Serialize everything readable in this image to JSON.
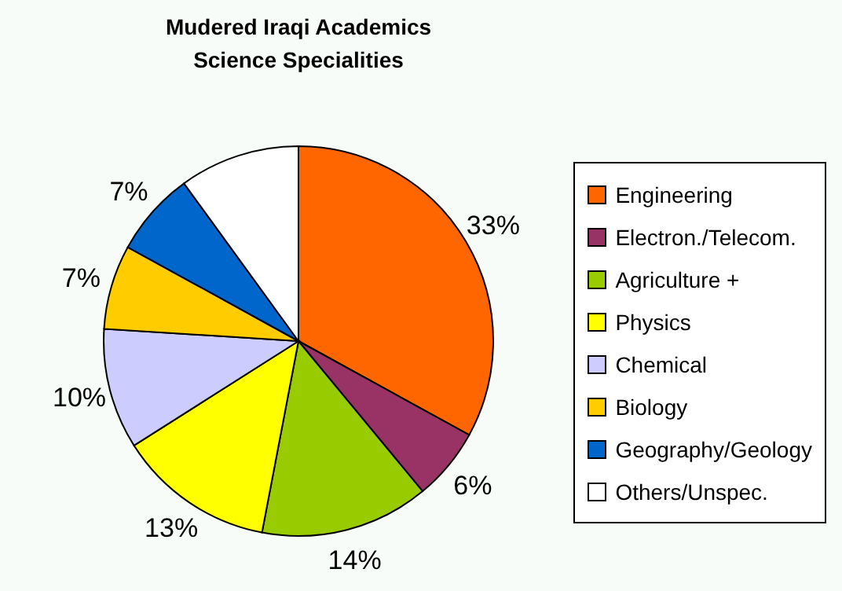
{
  "chart_data": {
    "type": "pie",
    "title": "Mudered Iraqi Academics\nScience Specialities",
    "categories": [
      "Engineering",
      "Electron./Telecom.",
      "Agriculture +",
      "Physics",
      "Chemical",
      "Biology",
      "Geography/Geology",
      "Others/Unspec."
    ],
    "values": [
      33,
      6,
      14,
      13,
      10,
      7,
      7,
      10
    ],
    "colors": [
      "#ff6600",
      "#993366",
      "#99cc00",
      "#ffff00",
      "#ccccff",
      "#ffcc00",
      "#0066cc",
      "#ffffff"
    ],
    "value_labels": [
      "33%",
      "6%",
      "14%",
      "13%",
      "10%",
      "7%",
      "7%",
      null
    ],
    "legend": "right"
  }
}
